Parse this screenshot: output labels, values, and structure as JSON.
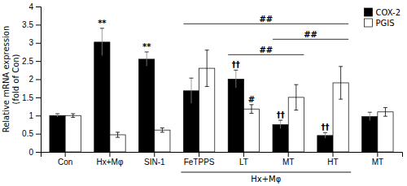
{
  "chart_data": {
    "type": "bar",
    "categories": [
      "Con",
      "Hx+Mφ",
      "SIN-1",
      "FeTPPS",
      "LT",
      "MT",
      "HT",
      "MT"
    ],
    "series": [
      {
        "name": "COX-2",
        "color": "#000000",
        "values": [
          1.0,
          3.02,
          2.55,
          1.68,
          2.0,
          0.75,
          0.45,
          0.97
        ],
        "errors": [
          0.05,
          0.38,
          0.2,
          0.35,
          0.25,
          0.12,
          0.08,
          0.12
        ]
      },
      {
        "name": "PGIS",
        "color": "#ffffff",
        "values": [
          1.0,
          0.47,
          0.6,
          2.3,
          1.18,
          1.5,
          1.9,
          1.1
        ],
        "errors": [
          0.05,
          0.07,
          0.06,
          0.5,
          0.12,
          0.35,
          0.45,
          0.12
        ]
      }
    ],
    "ylabel": "Relative mRNA expression\n(fold of Con)",
    "ylim": [
      0,
      4.0
    ],
    "yticks": [
      0,
      0.5,
      1,
      1.5,
      2,
      2.5,
      3,
      3.5,
      4
    ],
    "legend": "upper right",
    "annotations": [
      {
        "kind": "bar",
        "text": "**",
        "series": 0,
        "index": 1
      },
      {
        "kind": "bar",
        "text": "**",
        "series": 0,
        "index": 2
      },
      {
        "kind": "bar",
        "text": "††",
        "series": 0,
        "index": 4
      },
      {
        "kind": "bar",
        "text": "††",
        "series": 0,
        "index": 5
      },
      {
        "kind": "bar",
        "text": "††",
        "series": 0,
        "index": 6
      },
      {
        "kind": "bar",
        "text": "#",
        "series": 1,
        "index": 4
      },
      {
        "kind": "bracket",
        "text": "##",
        "from": 3,
        "to": 6
      },
      {
        "kind": "bracket",
        "text": "##",
        "from": 4,
        "to": 5
      },
      {
        "kind": "bracket",
        "text": "##",
        "from": 5,
        "to": 6
      },
      {
        "kind": "group",
        "text": "Hx+Mφ",
        "from": 3,
        "to": 6
      }
    ]
  }
}
